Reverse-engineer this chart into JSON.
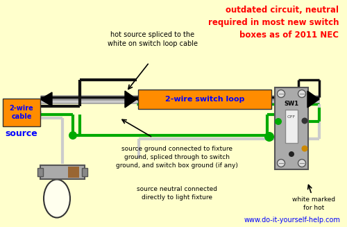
{
  "bg_color": "#FFFFCC",
  "title_text": "outdated circuit, neutral\nrequired in most new switch\nboxes as of 2011 NEC",
  "title_color": "#FF0000",
  "source_label": "2-wire\ncable",
  "source_label2": "source",
  "website": "www.do-it-yourself-help.com",
  "switch_loop_label": "2-wire switch loop",
  "annotation1": "hot source spliced to the\nwhite on switch loop cable",
  "annotation2": "source ground connected to fixture\nground, spliced through to switch\nground, and switch box ground (if any)",
  "annotation3": "source neutral connected\ndirectly to light fixture",
  "annotation4": "white marked\nfor hot",
  "orange": "#FF8C00",
  "green": "#00AA00",
  "blue_label": "#0000FF",
  "red_label": "#FF0000",
  "wire_black": "#111111",
  "wire_white": "#CCCCCC",
  "wire_green": "#00AA00",
  "wire_gray": "#999999"
}
